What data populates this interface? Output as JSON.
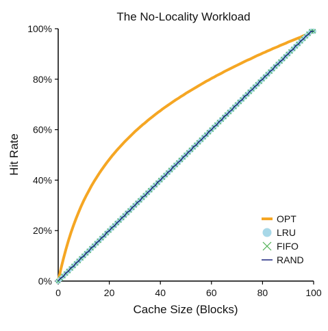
{
  "chart_data": {
    "type": "line",
    "title": "The No-Locality Workload",
    "xlabel": "Cache Size (Blocks)",
    "ylabel": "Hit Rate",
    "xlim": [
      0,
      100
    ],
    "ylim": [
      0,
      100
    ],
    "x_ticks": [
      "0",
      "20",
      "40",
      "60",
      "80",
      "100"
    ],
    "y_ticks": [
      "0%",
      "20%",
      "40%",
      "60%",
      "80%",
      "100%"
    ],
    "grid": false,
    "legend_position": "bottom-right",
    "x": [
      0,
      1,
      2,
      3,
      4,
      5,
      6,
      7,
      8,
      9,
      10,
      11,
      12,
      13,
      14,
      15,
      16,
      17,
      18,
      19,
      20,
      21,
      22,
      23,
      24,
      25,
      26,
      27,
      28,
      29,
      30,
      31,
      32,
      33,
      34,
      35,
      36,
      37,
      38,
      39,
      40,
      41,
      42,
      43,
      44,
      45,
      46,
      47,
      48,
      49,
      50,
      51,
      52,
      53,
      54,
      55,
      56,
      57,
      58,
      59,
      60,
      61,
      62,
      63,
      64,
      65,
      66,
      67,
      68,
      69,
      70,
      71,
      72,
      73,
      74,
      75,
      76,
      77,
      78,
      79,
      80,
      81,
      82,
      83,
      84,
      85,
      86,
      87,
      88,
      89,
      90,
      91,
      92,
      93,
      94,
      95,
      96,
      97,
      98,
      99,
      100
    ],
    "series": [
      {
        "name": "OPT",
        "color": "#f5a623",
        "style": "line",
        "values": [
          0,
          4.6,
          8.7,
          12.5,
          16.0,
          19.2,
          22.1,
          24.8,
          27.3,
          29.7,
          31.9,
          33.9,
          35.8,
          37.7,
          39.4,
          41.0,
          42.6,
          44.1,
          45.5,
          46.9,
          48.2,
          49.5,
          50.7,
          51.9,
          53.0,
          54.1,
          55.2,
          56.2,
          57.2,
          58.2,
          59.2,
          60.1,
          61.0,
          61.9,
          62.7,
          63.6,
          64.4,
          65.2,
          66.0,
          66.8,
          67.5,
          68.3,
          69.0,
          69.7,
          70.4,
          71.1,
          71.8,
          72.4,
          73.1,
          73.7,
          74.4,
          75.0,
          75.6,
          76.2,
          76.8,
          77.4,
          78.0,
          78.6,
          79.2,
          79.7,
          80.3,
          80.8,
          81.4,
          81.9,
          82.4,
          83.0,
          83.5,
          84.0,
          84.5,
          85.0,
          85.5,
          86.0,
          86.5,
          87.0,
          87.5,
          87.9,
          88.4,
          88.9,
          89.4,
          89.8,
          90.3,
          90.7,
          91.2,
          91.6,
          92.1,
          92.5,
          92.9,
          93.4,
          93.8,
          94.2,
          94.7,
          95.1,
          95.5,
          95.9,
          96.3,
          96.7,
          97.2,
          97.6,
          98.0,
          98.4,
          98.8
        ]
      },
      {
        "name": "LRU",
        "color": "#a8d8e8",
        "style": "circle",
        "values": [
          0,
          1,
          2,
          3,
          4,
          5,
          6,
          7,
          8,
          9,
          10,
          11,
          12,
          13,
          14,
          15,
          16,
          17,
          18,
          19,
          20,
          21,
          22,
          23,
          24,
          25,
          26,
          27,
          28,
          29,
          30,
          31,
          32,
          33,
          34,
          35,
          36,
          37,
          38,
          39,
          40,
          41,
          42,
          43,
          44,
          45,
          46,
          47,
          48,
          49,
          50,
          51,
          52,
          53,
          54,
          55,
          56,
          57,
          58,
          59,
          60,
          61,
          62,
          63,
          64,
          65,
          66,
          67,
          68,
          69,
          70,
          71,
          72,
          73,
          74,
          75,
          76,
          77,
          78,
          79,
          80,
          81,
          82,
          83,
          84,
          85,
          86,
          87,
          88,
          89,
          90,
          91,
          92,
          93,
          94,
          95,
          96,
          97,
          98,
          99,
          99
        ]
      },
      {
        "name": "FIFO",
        "color": "#4caf50",
        "style": "cross",
        "values": [
          0,
          1,
          2,
          3,
          4,
          5,
          6,
          7,
          8,
          9,
          10,
          11,
          12,
          13,
          14,
          15,
          16,
          17,
          18,
          19,
          20,
          21,
          22,
          23,
          24,
          25,
          26,
          27,
          28,
          29,
          30,
          31,
          32,
          33,
          34,
          35,
          36,
          37,
          38,
          39,
          40,
          41,
          42,
          43,
          44,
          45,
          46,
          47,
          48,
          49,
          50,
          51,
          52,
          53,
          54,
          55,
          56,
          57,
          58,
          59,
          60,
          61,
          62,
          63,
          64,
          65,
          66,
          67,
          68,
          69,
          70,
          71,
          72,
          73,
          74,
          75,
          76,
          77,
          78,
          79,
          80,
          81,
          82,
          83,
          84,
          85,
          86,
          87,
          88,
          89,
          90,
          91,
          92,
          93,
          94,
          95,
          96,
          97,
          98,
          99,
          99
        ]
      },
      {
        "name": "RAND",
        "color": "#1a237e",
        "style": "line",
        "values": [
          0,
          1.2,
          1.8,
          3.2,
          3.9,
          5.3,
          5.8,
          7.2,
          7.9,
          9.3,
          9.8,
          11.2,
          11.8,
          13.3,
          13.8,
          15.2,
          15.9,
          17.2,
          17.8,
          19.3,
          19.9,
          21.2,
          21.8,
          23.1,
          23.9,
          25.2,
          25.8,
          27.3,
          27.8,
          29.2,
          29.9,
          31.2,
          31.8,
          33.3,
          33.8,
          35.1,
          35.9,
          37.2,
          37.8,
          39.3,
          39.9,
          41.2,
          41.8,
          43.2,
          43.8,
          45.3,
          45.9,
          47.1,
          47.8,
          49.2,
          49.9,
          51.2,
          51.8,
          53.3,
          53.8,
          55.2,
          55.9,
          57.1,
          57.8,
          59.3,
          59.9,
          61.2,
          61.8,
          63.2,
          63.8,
          65.3,
          65.9,
          67.1,
          67.8,
          69.2,
          69.9,
          71.2,
          71.8,
          73.3,
          73.8,
          75.2,
          75.9,
          77.1,
          77.8,
          79.3,
          79.9,
          81.2,
          81.8,
          83.2,
          83.8,
          85.3,
          85.9,
          87.1,
          87.8,
          89.2,
          89.9,
          91.2,
          91.8,
          93.3,
          93.8,
          95.2,
          95.9,
          97.1,
          97.8,
          99.0,
          99.0
        ]
      }
    ]
  }
}
